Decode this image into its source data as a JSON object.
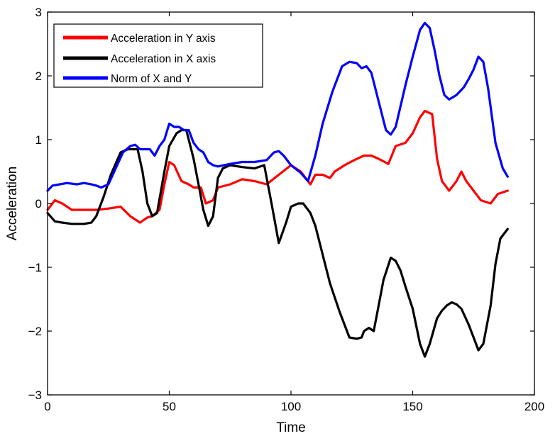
{
  "chart_data": {
    "type": "line",
    "title": "",
    "xlabel": "Time",
    "ylabel": "Acceleration",
    "xlim": [
      0,
      200
    ],
    "ylim": [
      -3,
      3
    ],
    "xticks": [
      0,
      50,
      100,
      150,
      200
    ],
    "yticks": [
      -3,
      -2,
      -1,
      0,
      1,
      2,
      3
    ],
    "xtick_labels": [
      "0",
      "50",
      "100",
      "150",
      "200"
    ],
    "ytick_labels": [
      "−3",
      "−2",
      "−1",
      "0",
      "1",
      "2",
      "3"
    ],
    "grid": false,
    "legend_position": "upper left",
    "series": [
      {
        "name": "Acceleration in Y axis",
        "color": "#ff0000",
        "x": [
          0,
          3,
          6,
          10,
          15,
          20,
          25,
          30,
          34,
          38,
          41,
          43,
          46,
          48,
          50,
          52,
          55,
          58,
          60,
          63,
          65,
          68,
          70,
          75,
          80,
          85,
          90,
          95,
          100,
          104,
          108,
          110,
          113,
          116,
          118,
          122,
          126,
          130,
          133,
          136,
          140,
          143,
          147,
          150,
          153,
          155,
          158,
          160,
          162,
          165,
          168,
          170,
          172,
          175,
          178,
          182,
          185,
          189
        ],
        "y": [
          -0.1,
          0.05,
          0.0,
          -0.1,
          -0.1,
          -0.1,
          -0.08,
          -0.05,
          -0.2,
          -0.3,
          -0.22,
          -0.2,
          -0.1,
          0.3,
          0.65,
          0.6,
          0.35,
          0.3,
          0.25,
          0.25,
          0.0,
          0.05,
          0.25,
          0.3,
          0.38,
          0.35,
          0.3,
          0.45,
          0.6,
          0.5,
          0.3,
          0.45,
          0.45,
          0.4,
          0.5,
          0.6,
          0.68,
          0.75,
          0.75,
          0.7,
          0.62,
          0.9,
          0.95,
          1.1,
          1.35,
          1.45,
          1.4,
          0.7,
          0.35,
          0.2,
          0.35,
          0.5,
          0.35,
          0.2,
          0.05,
          0.0,
          0.15,
          0.2
        ]
      },
      {
        "name": "Acceleration in X axis",
        "color": "#000000",
        "x": [
          0,
          3,
          6,
          10,
          15,
          18,
          20,
          23,
          26,
          30,
          33,
          37,
          39,
          41,
          43,
          45,
          48,
          50,
          53,
          55,
          57,
          60,
          62,
          64,
          66,
          68,
          70,
          72,
          75,
          80,
          85,
          89,
          92,
          95,
          98,
          100,
          103,
          105,
          108,
          110,
          113,
          116,
          120,
          124,
          127,
          129,
          130,
          132,
          134,
          136,
          138,
          141,
          143,
          145,
          147,
          150,
          153,
          155,
          157,
          160,
          162,
          164,
          166,
          168,
          170,
          173,
          175,
          177,
          179,
          182,
          184,
          186,
          189
        ],
        "y": [
          -0.15,
          -0.28,
          -0.3,
          -0.32,
          -0.32,
          -0.3,
          -0.2,
          0.1,
          0.45,
          0.8,
          0.85,
          0.85,
          0.5,
          0.0,
          -0.2,
          -0.15,
          0.5,
          0.9,
          1.1,
          1.15,
          1.15,
          0.7,
          0.3,
          -0.1,
          -0.35,
          -0.2,
          0.4,
          0.55,
          0.6,
          0.57,
          0.55,
          0.6,
          0.0,
          -0.62,
          -0.3,
          -0.05,
          0.0,
          0.0,
          -0.15,
          -0.35,
          -0.8,
          -1.25,
          -1.7,
          -2.1,
          -2.12,
          -2.1,
          -2.0,
          -1.95,
          -2.0,
          -1.6,
          -1.2,
          -0.85,
          -0.9,
          -1.05,
          -1.3,
          -1.65,
          -2.2,
          -2.4,
          -2.2,
          -1.8,
          -1.68,
          -1.6,
          -1.55,
          -1.58,
          -1.65,
          -1.9,
          -2.1,
          -2.3,
          -2.2,
          -1.6,
          -0.95,
          -0.55,
          -0.4
        ]
      },
      {
        "name": "Norm of X and Y",
        "color": "#0000ff",
        "x": [
          0,
          2,
          5,
          8,
          12,
          15,
          18,
          20,
          22,
          25,
          28,
          31,
          34,
          36,
          38,
          40,
          42,
          44,
          46,
          48,
          50,
          52,
          54,
          56,
          58,
          60,
          62,
          64,
          66,
          68,
          70,
          75,
          80,
          85,
          90,
          93,
          95,
          97,
          100,
          104,
          107,
          110,
          113,
          117,
          121,
          124,
          127,
          129,
          131,
          133,
          136,
          139,
          141,
          143,
          147,
          150,
          153,
          155,
          157,
          159,
          161,
          163,
          165,
          168,
          171,
          173,
          175,
          177,
          179,
          181,
          184,
          187,
          189
        ],
        "y": [
          0.2,
          0.28,
          0.3,
          0.32,
          0.3,
          0.32,
          0.3,
          0.28,
          0.25,
          0.3,
          0.55,
          0.8,
          0.9,
          0.92,
          0.85,
          0.85,
          0.85,
          0.75,
          0.9,
          1.0,
          1.25,
          1.2,
          1.2,
          1.15,
          1.15,
          0.95,
          0.85,
          0.8,
          0.65,
          0.6,
          0.58,
          0.62,
          0.65,
          0.65,
          0.68,
          0.8,
          0.82,
          0.75,
          0.6,
          0.48,
          0.35,
          0.75,
          1.25,
          1.75,
          2.15,
          2.22,
          2.2,
          2.12,
          2.15,
          2.05,
          1.6,
          1.15,
          1.08,
          1.2,
          1.85,
          2.3,
          2.72,
          2.83,
          2.75,
          2.4,
          2.0,
          1.7,
          1.63,
          1.7,
          1.82,
          1.95,
          2.1,
          2.3,
          2.22,
          1.8,
          0.95,
          0.55,
          0.42
        ]
      }
    ]
  }
}
